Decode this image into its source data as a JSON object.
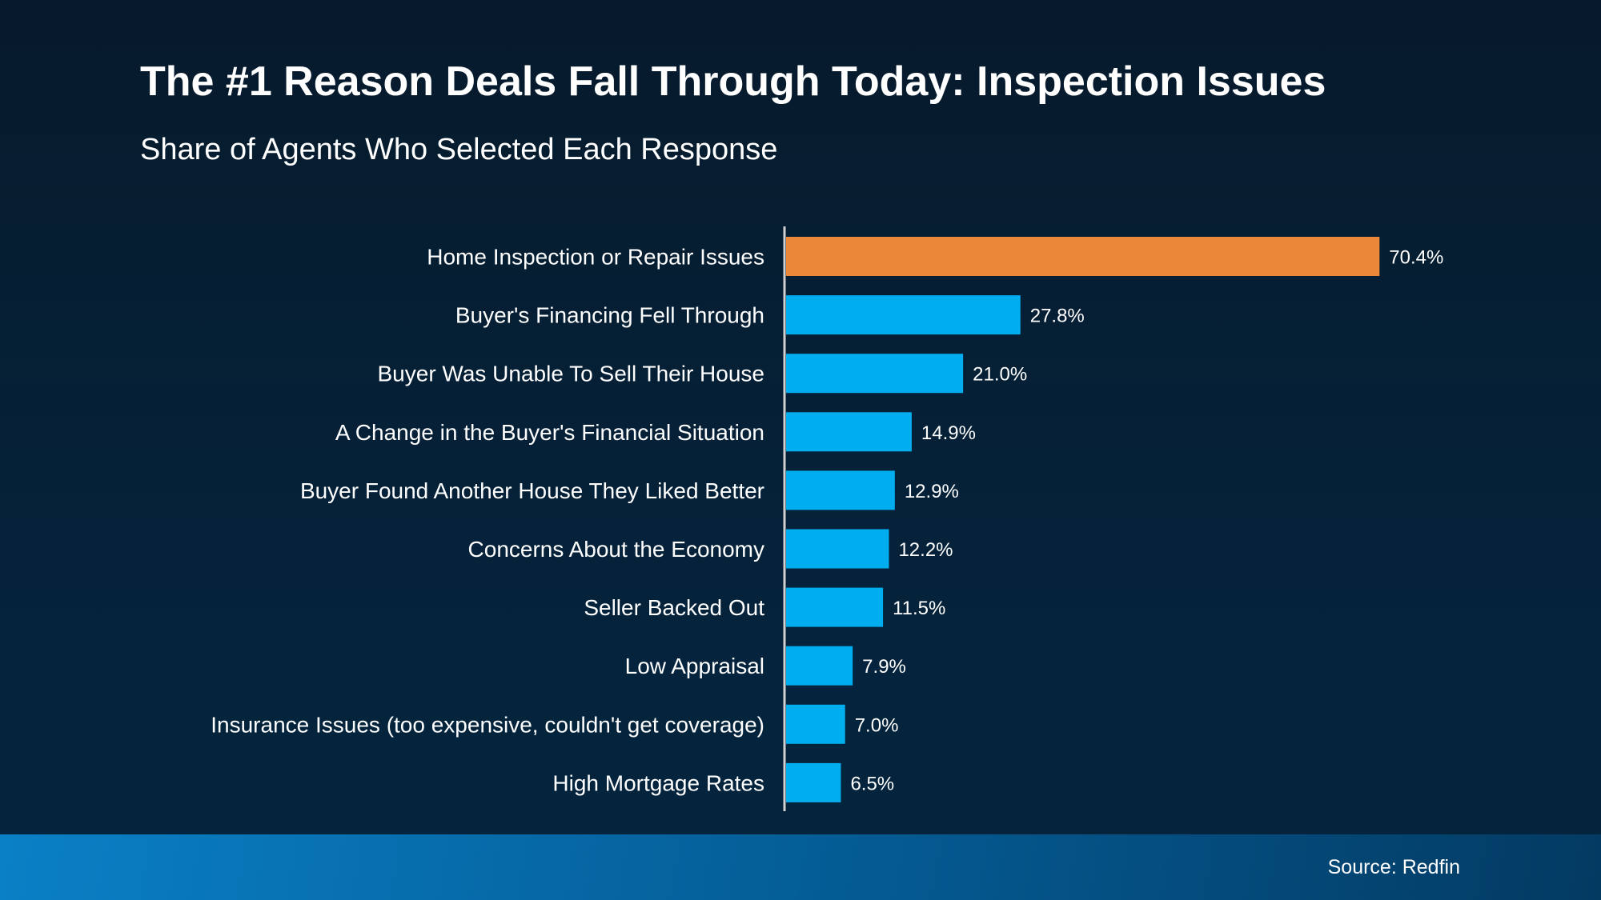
{
  "chart_data": {
    "type": "bar",
    "orientation": "horizontal",
    "title": "The #1 Reason Deals Fall Through Today: Inspection Issues",
    "subtitle": "Share of Agents Who Selected Each Response",
    "categories": [
      "Home Inspection or Repair Issues",
      "Buyer's Financing Fell Through",
      "Buyer Was Unable To Sell Their House",
      "A Change in the Buyer's Financial Situation",
      "Buyer Found Another House They Liked Better",
      "Concerns About the Economy",
      "Seller Backed Out",
      "Low Appraisal",
      "Insurance Issues (too expensive, couldn't get coverage)",
      "High Mortgage Rates"
    ],
    "values": [
      70.4,
      27.8,
      21.0,
      14.9,
      12.9,
      12.2,
      11.5,
      7.9,
      7.0,
      6.5
    ],
    "value_labels": [
      "70.4%",
      "27.8%",
      "21.0%",
      "14.9%",
      "12.9%",
      "12.2%",
      "11.5%",
      "7.9%",
      "7.0%",
      "6.5%"
    ],
    "highlight_index": 0,
    "colors": {
      "highlight": "#EA8738",
      "default": "#00AEEF",
      "axis": "#D0D0D0"
    },
    "grid": false,
    "xlabel": "",
    "ylabel": ""
  },
  "footer": {
    "source": "Source: Redfin"
  }
}
